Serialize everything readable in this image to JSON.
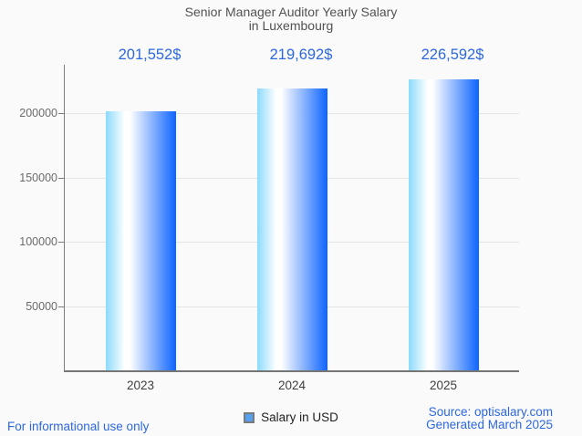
{
  "title": {
    "line1": "Senior Manager Auditor Yearly Salary",
    "line2": "in Luxembourg"
  },
  "chart_data": {
    "type": "bar",
    "title": "Senior Manager Auditor Yearly Salary in Luxembourg",
    "categories": [
      "2023",
      "2024",
      "2025"
    ],
    "values": [
      201552,
      219692,
      226592
    ],
    "value_labels": [
      "201,552$",
      "219,692$",
      "226,592$"
    ],
    "series_name": "Salary in USD",
    "xlabel": "",
    "ylabel": "",
    "ylim": [
      0,
      238000
    ],
    "yticks": [
      50000,
      100000,
      150000,
      200000
    ],
    "grid": true,
    "legend_position": "bottom"
  },
  "legend": {
    "label": "Salary in USD"
  },
  "footer": {
    "left": "For informational use only",
    "source": "Source: optisalary.com",
    "generated": "Generated March 2025"
  },
  "colors": {
    "bg": "#fafafa",
    "accent_blue": "#2c68de",
    "title_text": "#525254",
    "tick_text": "#6b6b6b",
    "xlabel_text": "#3e3e40",
    "legend_text": "#1f1f1f",
    "grid": "#e4e4e4",
    "axis": "#7d7d7d",
    "baseline": "#757575",
    "bar_light": "#8cdafc",
    "bar_deep": "#0d64fe",
    "legend_fill": "#55a0f0",
    "legend_border": "#7a7a7a"
  }
}
